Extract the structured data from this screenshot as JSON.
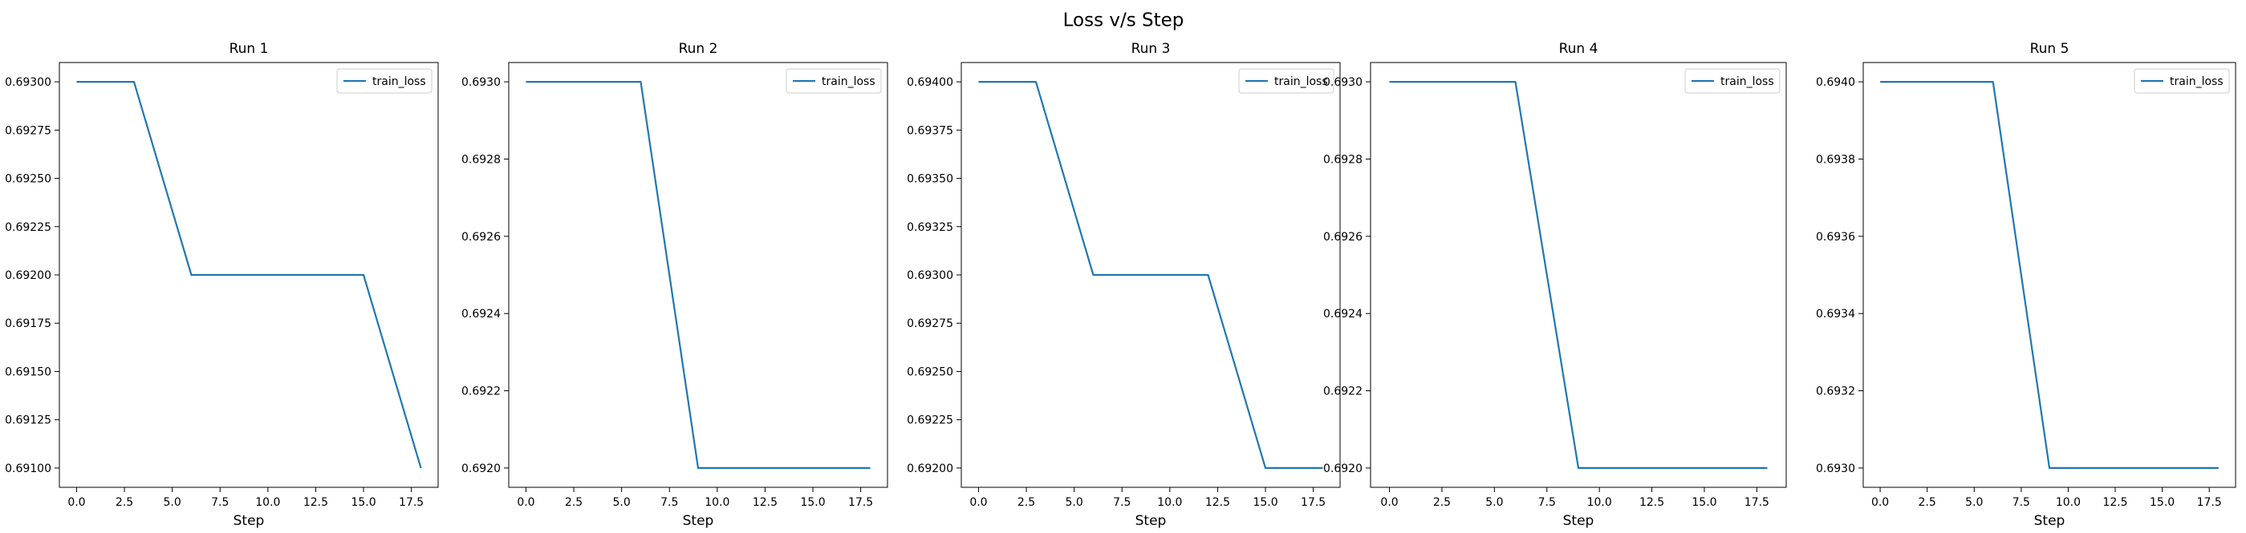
{
  "figure": {
    "title": "Loss v/s Step"
  },
  "chart_data": [
    {
      "type": "line",
      "title": "Run 1",
      "xlabel": "Step",
      "ylabel": "",
      "xlim": [
        -0.9,
        18.9
      ],
      "ylim": [
        0.6909,
        0.6931
      ],
      "xticks": [
        0.0,
        2.5,
        5.0,
        7.5,
        10.0,
        12.5,
        15.0,
        17.5
      ],
      "xtick_labels": [
        "0.0",
        "2.5",
        "5.0",
        "7.5",
        "10.0",
        "12.5",
        "15.0",
        "17.5"
      ],
      "yticks": [
        0.691,
        0.69125,
        0.6915,
        0.69175,
        0.692,
        0.69225,
        0.6925,
        0.69275,
        0.693
      ],
      "ytick_labels": [
        "0.69100",
        "0.69125",
        "0.69150",
        "0.69175",
        "0.69200",
        "0.69225",
        "0.69250",
        "0.69275",
        "0.69300"
      ],
      "legend": "top-right",
      "grid": false,
      "series": [
        {
          "name": "train_loss",
          "color": "#1f77b4",
          "x": [
            0,
            3,
            6,
            9,
            12,
            15,
            18
          ],
          "y": [
            0.693,
            0.693,
            0.692,
            0.692,
            0.692,
            0.692,
            0.691
          ]
        }
      ]
    },
    {
      "type": "line",
      "title": "Run 2",
      "xlabel": "Step",
      "ylabel": "",
      "xlim": [
        -0.9,
        18.9
      ],
      "ylim": [
        0.69195,
        0.69305
      ],
      "xticks": [
        0.0,
        2.5,
        5.0,
        7.5,
        10.0,
        12.5,
        15.0,
        17.5
      ],
      "xtick_labels": [
        "0.0",
        "2.5",
        "5.0",
        "7.5",
        "10.0",
        "12.5",
        "15.0",
        "17.5"
      ],
      "yticks": [
        0.692,
        0.6922,
        0.6924,
        0.6926,
        0.6928,
        0.693
      ],
      "ytick_labels": [
        "0.6920",
        "0.6922",
        "0.6924",
        "0.6926",
        "0.6928",
        "0.6930"
      ],
      "legend": "top-right",
      "grid": false,
      "series": [
        {
          "name": "train_loss",
          "color": "#1f77b4",
          "x": [
            0,
            3,
            6,
            9,
            12,
            15,
            18
          ],
          "y": [
            0.693,
            0.693,
            0.693,
            0.692,
            0.692,
            0.692,
            0.692
          ]
        }
      ]
    },
    {
      "type": "line",
      "title": "Run 3",
      "xlabel": "Step",
      "ylabel": "",
      "xlim": [
        -0.9,
        18.9
      ],
      "ylim": [
        0.6919,
        0.6941
      ],
      "xticks": [
        0.0,
        2.5,
        5.0,
        7.5,
        10.0,
        12.5,
        15.0,
        17.5
      ],
      "xtick_labels": [
        "0.0",
        "2.5",
        "5.0",
        "7.5",
        "10.0",
        "12.5",
        "15.0",
        "17.5"
      ],
      "yticks": [
        0.692,
        0.69225,
        0.6925,
        0.69275,
        0.693,
        0.69325,
        0.6935,
        0.69375,
        0.694
      ],
      "ytick_labels": [
        "0.69200",
        "0.69225",
        "0.69250",
        "0.69275",
        "0.69300",
        "0.69325",
        "0.69350",
        "0.69375",
        "0.69400"
      ],
      "legend": "top-right",
      "grid": false,
      "series": [
        {
          "name": "train_loss",
          "color": "#1f77b4",
          "x": [
            0,
            3,
            6,
            9,
            12,
            15,
            18
          ],
          "y": [
            0.694,
            0.694,
            0.693,
            0.693,
            0.693,
            0.692,
            0.692
          ]
        }
      ]
    },
    {
      "type": "line",
      "title": "Run 4",
      "xlabel": "Step",
      "ylabel": "",
      "xlim": [
        -0.9,
        18.9
      ],
      "ylim": [
        0.69195,
        0.69305
      ],
      "xticks": [
        0.0,
        2.5,
        5.0,
        7.5,
        10.0,
        12.5,
        15.0,
        17.5
      ],
      "xtick_labels": [
        "0.0",
        "2.5",
        "5.0",
        "7.5",
        "10.0",
        "12.5",
        "15.0",
        "17.5"
      ],
      "yticks": [
        0.692,
        0.6922,
        0.6924,
        0.6926,
        0.6928,
        0.693
      ],
      "ytick_labels": [
        "0.6920",
        "0.6922",
        "0.6924",
        "0.6926",
        "0.6928",
        "0.6930"
      ],
      "legend": "top-right",
      "grid": false,
      "series": [
        {
          "name": "train_loss",
          "color": "#1f77b4",
          "x": [
            0,
            3,
            6,
            9,
            12,
            15,
            18
          ],
          "y": [
            0.693,
            0.693,
            0.693,
            0.692,
            0.692,
            0.692,
            0.692
          ]
        }
      ]
    },
    {
      "type": "line",
      "title": "Run 5",
      "xlabel": "Step",
      "ylabel": "",
      "xlim": [
        -0.9,
        18.9
      ],
      "ylim": [
        0.69295,
        0.69405
      ],
      "xticks": [
        0.0,
        2.5,
        5.0,
        7.5,
        10.0,
        12.5,
        15.0,
        17.5
      ],
      "xtick_labels": [
        "0.0",
        "2.5",
        "5.0",
        "7.5",
        "10.0",
        "12.5",
        "15.0",
        "17.5"
      ],
      "yticks": [
        0.693,
        0.6932,
        0.6934,
        0.6936,
        0.6938,
        0.694
      ],
      "ytick_labels": [
        "0.6930",
        "0.6932",
        "0.6934",
        "0.6936",
        "0.6938",
        "0.6940"
      ],
      "legend": "top-right",
      "grid": false,
      "series": [
        {
          "name": "train_loss",
          "color": "#1f77b4",
          "x": [
            0,
            3,
            6,
            9,
            12,
            15,
            18
          ],
          "y": [
            0.694,
            0.694,
            0.694,
            0.693,
            0.693,
            0.693,
            0.693
          ]
        }
      ]
    }
  ]
}
